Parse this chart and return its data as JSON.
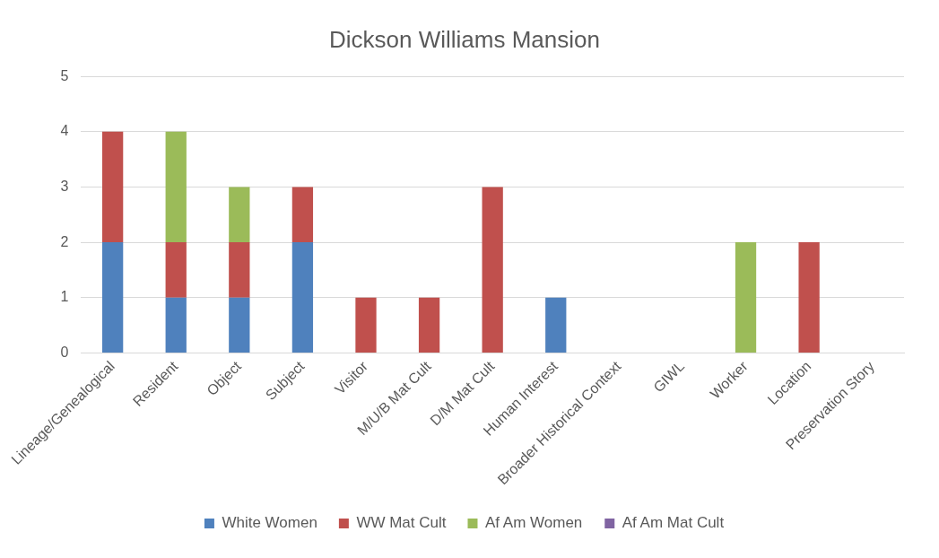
{
  "chart_data": {
    "type": "bar",
    "title": "Dickson Williams Mansion",
    "stacked": true,
    "categories": [
      "Lineage/Genealogical",
      "Resident",
      "Object",
      "Subject",
      "Visitor",
      "M/U/B Mat Cult",
      "D/M Mat Cult",
      "Human Interest",
      "Broader Historical Context",
      "GIWL",
      "Worker",
      "Location",
      "Preservation Story"
    ],
    "series": [
      {
        "name": "White Women",
        "color": "#4f81bd",
        "values": [
          2,
          1,
          1,
          2,
          0,
          0,
          0,
          1,
          0,
          0,
          0,
          0,
          0
        ]
      },
      {
        "name": "WW Mat Cult",
        "color": "#c0504d",
        "values": [
          2,
          1,
          1,
          1,
          1,
          1,
          3,
          0,
          0,
          0,
          0,
          2,
          0
        ]
      },
      {
        "name": "Af Am Women",
        "color": "#9bbb59",
        "values": [
          0,
          2,
          1,
          0,
          0,
          0,
          0,
          0,
          0,
          0,
          2,
          0,
          0
        ]
      },
      {
        "name": "Af Am Mat Cult",
        "color": "#8064a2",
        "values": [
          0,
          0,
          0,
          0,
          0,
          0,
          0,
          0,
          0,
          0,
          0,
          0,
          0
        ]
      }
    ],
    "ylim": [
      0,
      5
    ],
    "yticks": [
      0,
      1,
      2,
      3,
      4,
      5
    ],
    "grid": "y",
    "legend": "bottom"
  }
}
